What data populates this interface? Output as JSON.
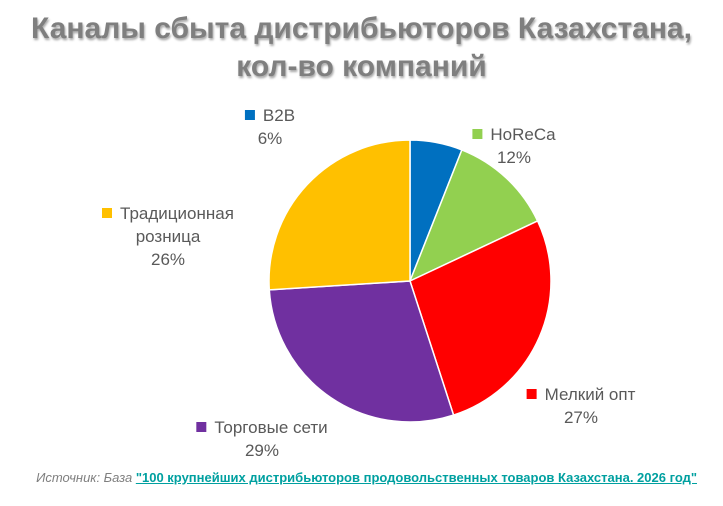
{
  "chart_data": {
    "type": "pie",
    "title": "Каналы сбыта дистрибьюторов Казахстана, кол-во компаний",
    "categories": [
      "B2B",
      "HoReCa",
      "Мелкий опт",
      "Торговые сети",
      "Традиционная розница"
    ],
    "values": [
      6,
      12,
      27,
      29,
      26
    ],
    "value_labels": [
      "6%",
      "12%",
      "27%",
      "29%",
      "26%"
    ],
    "colors": [
      "#0070c0",
      "#92d050",
      "#ff0000",
      "#7030a0",
      "#ffc000"
    ],
    "source_label": "Источник: База",
    "source_link": "\"100 крупнейших дистрибьюторов продовольственных товаров Казахстана. 2026 год\""
  }
}
